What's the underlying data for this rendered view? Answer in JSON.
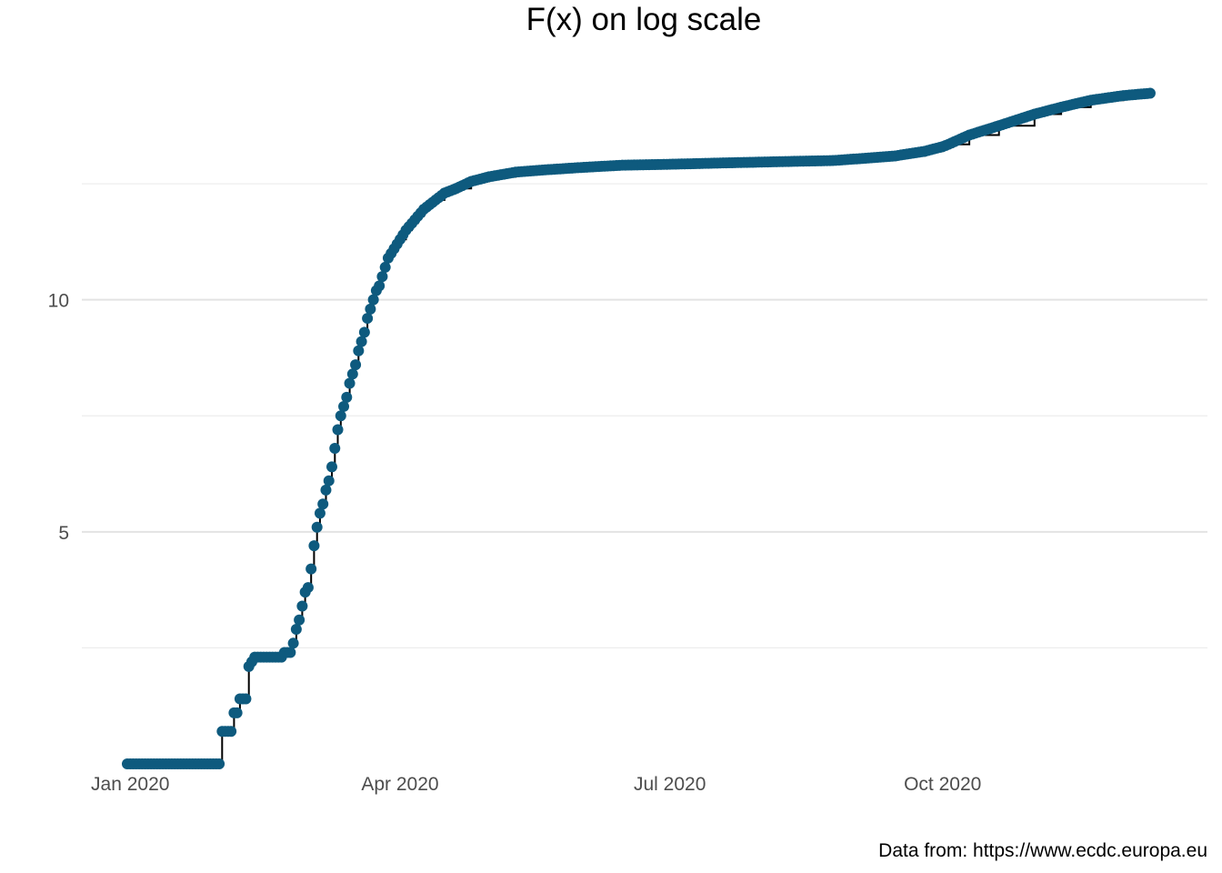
{
  "chart_data": {
    "type": "line",
    "title": "F(x) on log scale",
    "caption": "Data from: https://www.ecdc.europa.eu",
    "xlabel": "",
    "ylabel": "",
    "x_scale": "date",
    "y_scale": "log",
    "xlim": [
      "2019-12-31",
      "2020-12-14"
    ],
    "ylim": [
      0,
      14.5
    ],
    "x_ticks": [
      {
        "date": "2020-01-01",
        "label": "Jan 2020"
      },
      {
        "date": "2020-04-01",
        "label": "Apr 2020"
      },
      {
        "date": "2020-07-01",
        "label": "Jul 2020"
      },
      {
        "date": "2020-10-01",
        "label": "Oct 2020"
      }
    ],
    "y_ticks": [
      {
        "value": 5,
        "label": "5"
      },
      {
        "value": 10,
        "label": "10"
      }
    ],
    "y_minor_gridlines": [
      2.5,
      7.5,
      12.5
    ],
    "grid": true,
    "legend": "none",
    "colors": {
      "points": "#0e5a7e",
      "line": "#000000",
      "grid": "#e3e3e3"
    },
    "series": [
      {
        "x": [
          "2019-12-31",
          "2020-01-01",
          "2020-01-05",
          "2020-01-10",
          "2020-01-15",
          "2020-01-20",
          "2020-01-25",
          "2020-01-30",
          "2020-01-31",
          "2020-02-01",
          "2020-02-02",
          "2020-02-03",
          "2020-02-04",
          "2020-02-05",
          "2020-02-06",
          "2020-02-07",
          "2020-02-08",
          "2020-02-09",
          "2020-02-10",
          "2020-02-11",
          "2020-02-12",
          "2020-02-13",
          "2020-02-14",
          "2020-02-15",
          "2020-02-16",
          "2020-02-17",
          "2020-02-18",
          "2020-02-19",
          "2020-02-20",
          "2020-02-21",
          "2020-02-22",
          "2020-02-23",
          "2020-02-24",
          "2020-02-25",
          "2020-02-26",
          "2020-02-27",
          "2020-02-28",
          "2020-02-29",
          "2020-03-01",
          "2020-03-02",
          "2020-03-03",
          "2020-03-04",
          "2020-03-05",
          "2020-03-06",
          "2020-03-07",
          "2020-03-08",
          "2020-03-09",
          "2020-03-10",
          "2020-03-11",
          "2020-03-12",
          "2020-03-13",
          "2020-03-14",
          "2020-03-15",
          "2020-03-16",
          "2020-03-17",
          "2020-03-18",
          "2020-03-19",
          "2020-03-20",
          "2020-03-21",
          "2020-03-22",
          "2020-03-23",
          "2020-03-24",
          "2020-03-25",
          "2020-03-26",
          "2020-03-27",
          "2020-03-28",
          "2020-03-29",
          "2020-03-30",
          "2020-03-31",
          "2020-04-01",
          "2020-04-03",
          "2020-04-05",
          "2020-04-07",
          "2020-04-09",
          "2020-04-11",
          "2020-04-13",
          "2020-04-16",
          "2020-04-20",
          "2020-04-25",
          "2020-05-01",
          "2020-05-10",
          "2020-05-20",
          "2020-06-01",
          "2020-06-15",
          "2020-07-01",
          "2020-07-20",
          "2020-08-10",
          "2020-08-25",
          "2020-09-05",
          "2020-09-15",
          "2020-09-25",
          "2020-10-01",
          "2020-10-03",
          "2020-10-10",
          "2020-10-20",
          "2020-11-01",
          "2020-11-10",
          "2020-11-20",
          "2020-12-01",
          "2020-12-10"
        ],
        "y": [
          0,
          0,
          0,
          0,
          0,
          0,
          0,
          0,
          0,
          0.7,
          0.7,
          0.7,
          0.7,
          1.1,
          1.1,
          1.4,
          1.4,
          1.4,
          2.1,
          2.2,
          2.3,
          2.3,
          2.3,
          2.3,
          2.3,
          2.3,
          2.3,
          2.3,
          2.3,
          2.3,
          2.4,
          2.4,
          2.4,
          2.6,
          2.9,
          3.1,
          3.4,
          3.7,
          3.8,
          4.2,
          4.7,
          5.1,
          5.4,
          5.6,
          5.9,
          6.1,
          6.4,
          6.8,
          7.2,
          7.5,
          7.7,
          7.9,
          8.2,
          8.4,
          8.6,
          8.9,
          9.1,
          9.3,
          9.6,
          9.8,
          10,
          10.2,
          10.3,
          10.5,
          10.7,
          10.9,
          11,
          11.1,
          11.2,
          11.3,
          11.5,
          11.65,
          11.8,
          11.95,
          12.05,
          12.15,
          12.3,
          12.4,
          12.55,
          12.65,
          12.75,
          12.8,
          12.85,
          12.9,
          12.92,
          12.95,
          12.98,
          13.0,
          13.05,
          13.1,
          13.2,
          13.3,
          13.35,
          13.55,
          13.75,
          14.0,
          14.15,
          14.3,
          14.4,
          14.45
        ]
      }
    ]
  }
}
